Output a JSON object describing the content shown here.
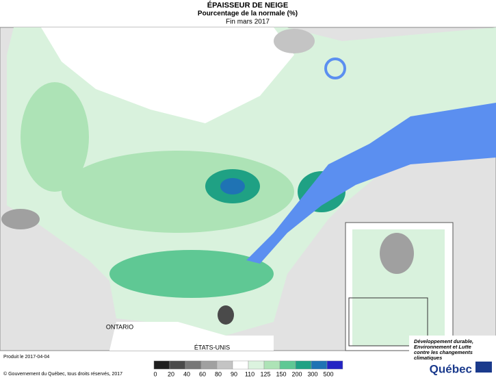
{
  "title": "ÉPAISSEUR DE NEIGE",
  "subtitle": "Pourcentage de la normale (%)",
  "period": "Fin mars 2017",
  "places": {
    "ontario": "ONTARIO",
    "usa": "ÉTATS-UNIS"
  },
  "legend": {
    "ticks": [
      0,
      20,
      40,
      60,
      80,
      90,
      110,
      125,
      150,
      200,
      300,
      500
    ],
    "colors": [
      "#1e1e1e",
      "#4a4a4a",
      "#777777",
      "#a0a0a0",
      "#c4c4c4",
      "#ffffff",
      "#dcf3df",
      "#ade3b6",
      "#5fc894",
      "#1fa184",
      "#1f73b4",
      "#2323c4"
    ]
  },
  "footer": {
    "produced": "Produit le 2017-04-04",
    "copyright": "© Gouvernement du Québec, tous droits réservés, 2017"
  },
  "logo": {
    "lines": [
      "Développement durable,",
      "Environnement et Lutte",
      "contre les changements",
      "climatiques"
    ],
    "brand": "Québec"
  }
}
